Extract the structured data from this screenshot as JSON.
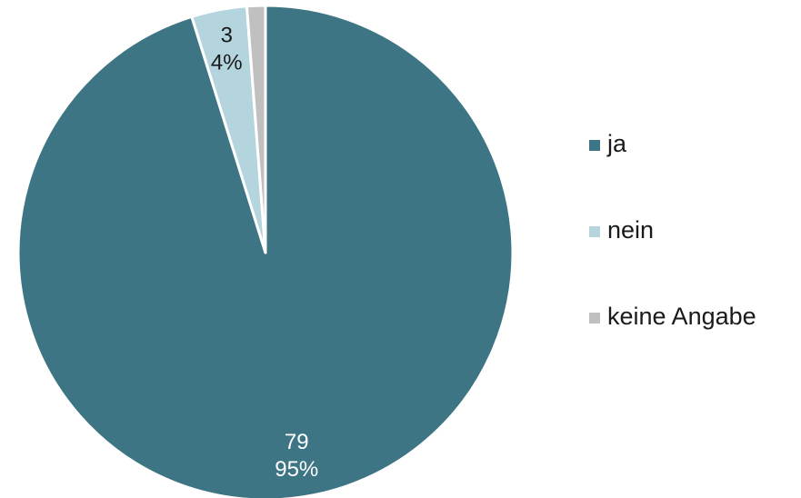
{
  "chart_data": {
    "type": "pie",
    "categories": [
      "ja",
      "nein",
      "keine Angabe"
    ],
    "values": [
      79,
      3,
      1
    ],
    "percent_labels": [
      "95%",
      "4%",
      null
    ],
    "colors": [
      "#3d7584",
      "#b4d5dd",
      "#c0c0c0"
    ],
    "label_colors": [
      "#ffffff",
      "#1a1a1a",
      null
    ],
    "legend": "right"
  }
}
